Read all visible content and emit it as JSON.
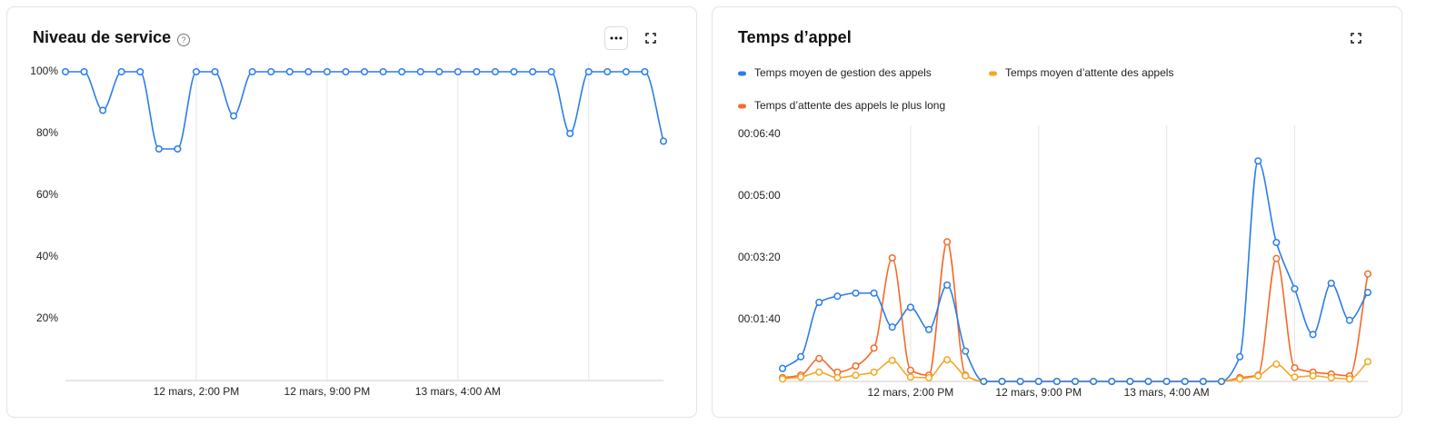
{
  "chart_data": [
    {
      "type": "line",
      "title": "Niveau de service",
      "categories": [
        null,
        null,
        null,
        null,
        null,
        null,
        null,
        "12 mars, 2:00 PM",
        null,
        null,
        null,
        null,
        null,
        null,
        "12 mars, 9:00 PM",
        null,
        null,
        null,
        null,
        null,
        null,
        "13 mars, 4:00 AM",
        null,
        null,
        null,
        null,
        null,
        null,
        null,
        null,
        null,
        null,
        null
      ],
      "series": [
        {
          "color": "#2b7de9",
          "values": [
            100,
            100,
            87.5,
            100,
            100,
            75,
            75,
            100,
            100,
            85.7,
            100,
            100,
            100,
            100,
            100,
            100,
            100,
            100,
            100,
            100,
            100,
            100,
            100,
            100,
            100,
            100,
            100,
            80,
            100,
            100,
            100,
            100,
            77.5
          ]
        }
      ],
      "ylim": [
        0,
        100
      ],
      "yticks": [
        {
          "value": 20,
          "label": "20%"
        },
        {
          "value": 40,
          "label": "40%"
        },
        {
          "value": 60,
          "label": "60%"
        },
        {
          "value": 80,
          "label": "80%"
        },
        {
          "value": 100,
          "label": "100%"
        }
      ]
    },
    {
      "type": "line",
      "title": "Temps d’appel",
      "categories": [
        null,
        null,
        null,
        null,
        null,
        null,
        null,
        "12 mars, 2:00 PM",
        null,
        null,
        null,
        null,
        null,
        null,
        "12 mars, 9:00 PM",
        null,
        null,
        null,
        null,
        null,
        null,
        "13 mars, 4:00 AM",
        null,
        null,
        null,
        null,
        null,
        null,
        null,
        null,
        null,
        null,
        null
      ],
      "series": [
        {
          "name": "Temps moyen de gestion des appels",
          "color": "#2b7de9",
          "values": [
            21,
            40,
            128,
            138,
            143,
            143,
            88,
            120,
            84,
            156,
            49,
            0,
            0,
            0,
            0,
            0,
            0,
            0,
            0,
            0,
            0,
            0,
            0,
            0,
            0,
            40,
            357,
            225,
            150,
            76,
            159,
            99,
            144
          ]
        },
        {
          "name": "Temps moyen d’attente des appels",
          "color": "#f5a623",
          "values": [
            4,
            7,
            15,
            6,
            10,
            15,
            34,
            7,
            6,
            35,
            9,
            0,
            0,
            0,
            0,
            0,
            0,
            0,
            0,
            0,
            0,
            0,
            0,
            0,
            0,
            4,
            9,
            28,
            7,
            9,
            6,
            4,
            32
          ]
        },
        {
          "name": "Temps d’attente des appels le plus long",
          "color": "#f26b2a",
          "values": [
            6,
            10,
            37,
            15,
            25,
            54,
            200,
            18,
            10,
            226,
            10,
            0,
            0,
            0,
            0,
            0,
            0,
            0,
            0,
            0,
            0,
            0,
            0,
            0,
            0,
            6,
            10,
            199,
            22,
            15,
            12,
            9,
            174
          ]
        }
      ],
      "ylim": [
        0,
        400
      ],
      "yticks": [
        {
          "value": 100,
          "label": "00:01:40"
        },
        {
          "value": 200,
          "label": "00:03:20"
        },
        {
          "value": 300,
          "label": "00:05:00"
        },
        {
          "value": 400,
          "label": "00:06:40"
        }
      ]
    }
  ]
}
